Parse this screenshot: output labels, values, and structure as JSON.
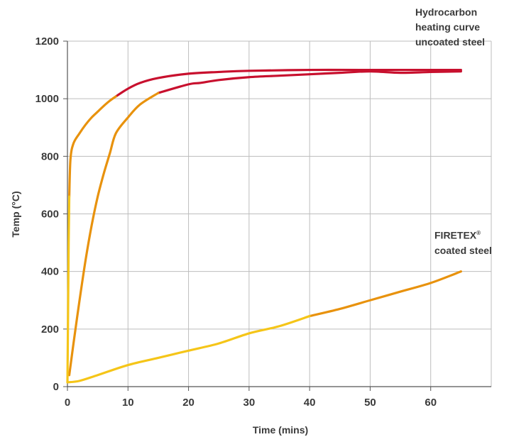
{
  "chart_data": {
    "type": "line",
    "xlabel": "Time (mins)",
    "ylabel": "Temp (°C)",
    "xlim": [
      0,
      70
    ],
    "ylim": [
      0,
      1200
    ],
    "x_ticks": [
      "0",
      "10",
      "20",
      "30",
      "40",
      "50",
      "60"
    ],
    "y_ticks": [
      "0",
      "200",
      "400",
      "600",
      "800",
      "1000",
      "1200"
    ],
    "grid": true,
    "annotations": [
      {
        "lines": [
          "Hydrocarbon",
          "heating curve",
          "uncoated steel"
        ]
      },
      {
        "lines": [
          "FIRETEX",
          "coated steel"
        ],
        "superscript": "®"
      }
    ],
    "series": [
      {
        "color": "#c8102e",
        "x": [
          15,
          20,
          22,
          25,
          30,
          35,
          40,
          45,
          50,
          55,
          60,
          65
        ],
        "y": [
          1020,
          1050,
          1055,
          1065,
          1075,
          1080,
          1085,
          1090,
          1095,
          1090,
          1093,
          1095
        ]
      },
      {
        "color": "#c8102e",
        "x": [
          8,
          10,
          12,
          15,
          20,
          25,
          30,
          40,
          50,
          65
        ],
        "y": [
          1008,
          1035,
          1055,
          1072,
          1087,
          1093,
          1097,
          1100,
          1100,
          1100
        ]
      },
      {
        "color": "#e8920d",
        "x": [
          0.3,
          1,
          2,
          3,
          4,
          5,
          6,
          7,
          8,
          10,
          12,
          15
        ],
        "y": [
          40,
          150,
          300,
          440,
          560,
          660,
          740,
          810,
          880,
          935,
          980,
          1020
        ]
      },
      {
        "color": "#e8920d",
        "x": [
          0.3,
          0.5,
          1,
          2,
          3,
          4,
          5,
          6,
          7,
          8
        ],
        "y": [
          660,
          790,
          845,
          880,
          910,
          935,
          955,
          975,
          993,
          1008
        ]
      },
      {
        "color": "#e8920d",
        "x": [
          40,
          45,
          50,
          55,
          60,
          65
        ],
        "y": [
          245,
          270,
          300,
          330,
          360,
          400
        ]
      },
      {
        "color": "#f5c518",
        "x": [
          0,
          0.1,
          0.2,
          0.3
        ],
        "y": [
          15,
          250,
          500,
          660
        ]
      },
      {
        "color": "#f5c518",
        "x": [
          0,
          2,
          5,
          10,
          15,
          20,
          25,
          30,
          35,
          40
        ],
        "y": [
          15,
          20,
          40,
          75,
          100,
          125,
          150,
          185,
          210,
          245
        ]
      }
    ]
  }
}
